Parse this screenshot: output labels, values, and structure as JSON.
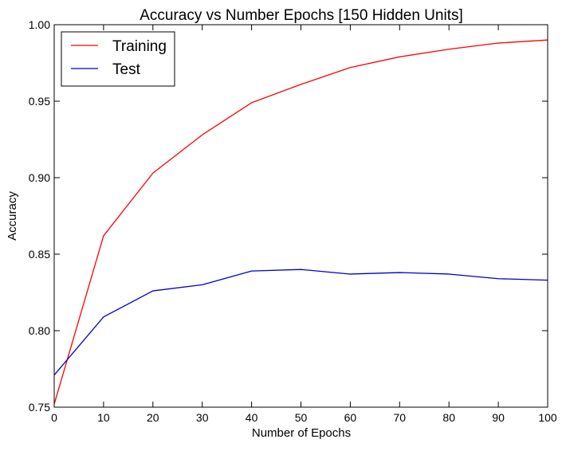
{
  "chart_data": {
    "type": "line",
    "title": "Accuracy vs Number Epochs [150 Hidden Units]",
    "xlabel": "Number of Epochs",
    "ylabel": "Accuracy",
    "xlim": [
      0,
      100
    ],
    "ylim": [
      0.75,
      1.0
    ],
    "xticks": [
      0,
      10,
      20,
      30,
      40,
      50,
      60,
      70,
      80,
      90,
      100
    ],
    "yticks": [
      0.75,
      0.8,
      0.85,
      0.9,
      0.95,
      1.0
    ],
    "ytick_labels": [
      "0.75",
      "0.80",
      "0.85",
      "0.90",
      "0.95",
      "1.00"
    ],
    "grid": false,
    "legend_position": "top-left",
    "x": [
      0,
      10,
      20,
      30,
      40,
      50,
      60,
      70,
      80,
      90,
      100
    ],
    "series": [
      {
        "name": "Training",
        "color": "#ff0000",
        "values": [
          0.752,
          0.862,
          0.903,
          0.928,
          0.949,
          0.961,
          0.972,
          0.979,
          0.984,
          0.988,
          0.99
        ]
      },
      {
        "name": "Test",
        "color": "#0000cc",
        "values": [
          0.771,
          0.809,
          0.826,
          0.83,
          0.839,
          0.84,
          0.837,
          0.838,
          0.837,
          0.834,
          0.833
        ]
      }
    ]
  }
}
